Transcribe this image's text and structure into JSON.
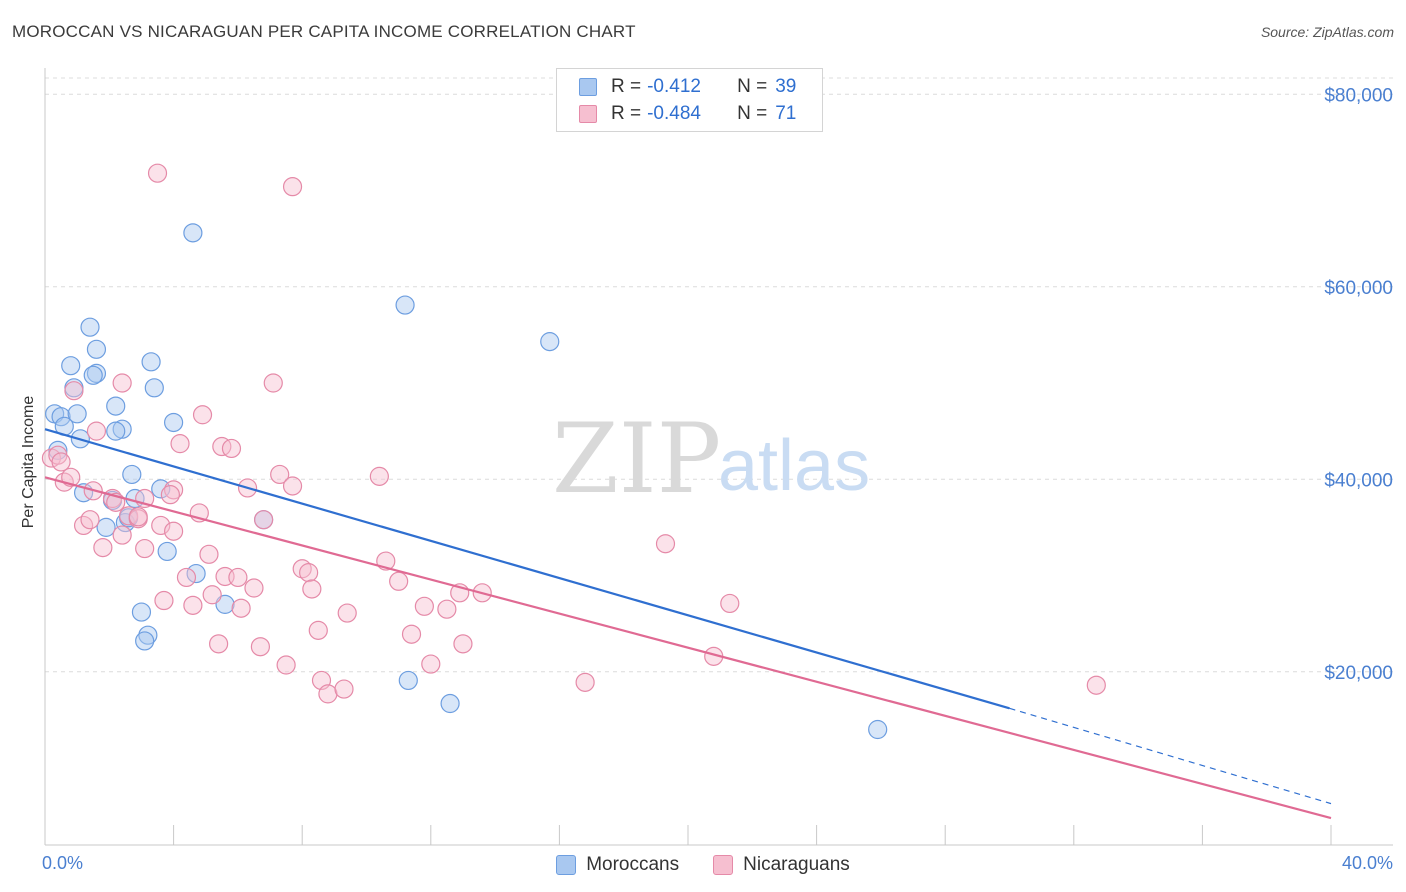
{
  "header": {
    "title": "MOROCCAN VS NICARAGUAN PER CAPITA INCOME CORRELATION CHART",
    "source": "Source: ZipAtlas.com"
  },
  "watermark": {
    "zip": "ZIP",
    "atlas": "atlas"
  },
  "stats_legend": {
    "rows": [
      {
        "r_label": "R =",
        "r_value": "-0.412",
        "n_label": "N =",
        "n_value": "39",
        "color": "#a9c8f0",
        "border": "#6d9ee0"
      },
      {
        "r_label": "R =",
        "r_value": "-0.484",
        "n_label": "N =",
        "n_value": "71",
        "color": "#f6bfd0",
        "border": "#e58aa8"
      }
    ]
  },
  "colors": {
    "blue_fill": "#a9c8f0",
    "blue_stroke": "#6d9ee0",
    "blue_line": "#2f6fd0",
    "pink_fill": "#f6bfd0",
    "pink_stroke": "#e58aa8",
    "pink_line": "#e06a93",
    "grid": "#dcdcdc",
    "tick_text": "#4a7fd0"
  },
  "chart_data": {
    "type": "scatter",
    "title": "MOROCCAN VS NICARAGUAN PER CAPITA INCOME CORRELATION CHART",
    "xlabel": "",
    "ylabel": "Per Capita Income",
    "xlim": [
      0,
      40
    ],
    "ylim": [
      2000,
      82000
    ],
    "x_tick_labels": [
      "0.0%",
      "40.0%"
    ],
    "y_ticks": [
      20000,
      40000,
      60000,
      80000
    ],
    "y_tick_labels": [
      "$20,000",
      "$40,000",
      "$60,000",
      "$80,000"
    ],
    "grid": "horizontal dashed",
    "legend_placement": "top-center (stats), bottom-center (series)",
    "series": [
      {
        "name": "Moroccans",
        "color": "#a9c8f0",
        "r": -0.412,
        "n": 39,
        "trend": {
          "x0": 0,
          "y0": 45200,
          "x1": 30,
          "y1": 16200,
          "dashed_to_x": 40,
          "dashed_to_y": 6300
        },
        "points": [
          [
            0.3,
            46800
          ],
          [
            0.5,
            46500
          ],
          [
            0.6,
            45500
          ],
          [
            0.4,
            43000
          ],
          [
            1.0,
            46800
          ],
          [
            1.1,
            44200
          ],
          [
            0.8,
            51800
          ],
          [
            0.9,
            49500
          ],
          [
            1.4,
            55800
          ],
          [
            1.6,
            53500
          ],
          [
            1.6,
            51000
          ],
          [
            1.5,
            50800
          ],
          [
            2.2,
            47600
          ],
          [
            2.4,
            45200
          ],
          [
            2.2,
            45000
          ],
          [
            3.3,
            52200
          ],
          [
            3.4,
            49500
          ],
          [
            4.0,
            45900
          ],
          [
            4.6,
            65600
          ],
          [
            1.2,
            38600
          ],
          [
            1.9,
            35000
          ],
          [
            2.7,
            40500
          ],
          [
            2.8,
            38000
          ],
          [
            2.5,
            35500
          ],
          [
            3.6,
            39000
          ],
          [
            3.8,
            32500
          ],
          [
            4.7,
            30200
          ],
          [
            5.6,
            27000
          ],
          [
            3.0,
            26200
          ],
          [
            3.2,
            23800
          ],
          [
            3.1,
            23200
          ],
          [
            6.8,
            35800
          ],
          [
            11.2,
            58100
          ],
          [
            15.7,
            54300
          ],
          [
            11.3,
            19100
          ],
          [
            12.6,
            16700
          ],
          [
            25.9,
            14000
          ],
          [
            2.6,
            36000
          ],
          [
            2.1,
            37800
          ]
        ]
      },
      {
        "name": "Nicaraguans",
        "color": "#f6bfd0",
        "r": -0.484,
        "n": 71,
        "trend": {
          "x0": 0,
          "y0": 40200,
          "x1": 40,
          "y1": 4800
        },
        "points": [
          [
            0.2,
            42200
          ],
          [
            0.4,
            42500
          ],
          [
            0.5,
            41800
          ],
          [
            0.6,
            39700
          ],
          [
            0.8,
            40200
          ],
          [
            0.9,
            49200
          ],
          [
            1.2,
            35200
          ],
          [
            1.4,
            35800
          ],
          [
            1.5,
            38800
          ],
          [
            1.6,
            45000
          ],
          [
            1.8,
            32900
          ],
          [
            2.1,
            38000
          ],
          [
            2.2,
            37600
          ],
          [
            2.4,
            34200
          ],
          [
            2.4,
            50000
          ],
          [
            2.6,
            36200
          ],
          [
            2.9,
            35900
          ],
          [
            3.1,
            32800
          ],
          [
            3.1,
            38000
          ],
          [
            3.5,
            71800
          ],
          [
            3.6,
            35200
          ],
          [
            3.7,
            27400
          ],
          [
            4.0,
            34600
          ],
          [
            4.0,
            38900
          ],
          [
            4.2,
            43700
          ],
          [
            4.4,
            29800
          ],
          [
            4.6,
            26900
          ],
          [
            4.8,
            36500
          ],
          [
            4.9,
            46700
          ],
          [
            5.1,
            32200
          ],
          [
            5.2,
            28000
          ],
          [
            5.4,
            22900
          ],
          [
            5.5,
            43400
          ],
          [
            5.8,
            43200
          ],
          [
            5.6,
            29900
          ],
          [
            6.0,
            29800
          ],
          [
            6.1,
            26600
          ],
          [
            6.3,
            39100
          ],
          [
            6.5,
            28700
          ],
          [
            6.8,
            35800
          ],
          [
            6.7,
            22600
          ],
          [
            7.1,
            50000
          ],
          [
            7.3,
            40500
          ],
          [
            7.5,
            20700
          ],
          [
            7.7,
            39300
          ],
          [
            7.7,
            70400
          ],
          [
            8.0,
            30700
          ],
          [
            8.2,
            30300
          ],
          [
            8.3,
            28600
          ],
          [
            8.5,
            24300
          ],
          [
            8.6,
            19100
          ],
          [
            8.8,
            17700
          ],
          [
            9.3,
            18200
          ],
          [
            9.4,
            26100
          ],
          [
            10.4,
            40300
          ],
          [
            10.6,
            31500
          ],
          [
            11.0,
            29400
          ],
          [
            11.4,
            23900
          ],
          [
            11.8,
            26800
          ],
          [
            12.0,
            20800
          ],
          [
            12.5,
            26500
          ],
          [
            12.9,
            28200
          ],
          [
            13.0,
            22900
          ],
          [
            13.6,
            28200
          ],
          [
            16.8,
            18900
          ],
          [
            19.3,
            33300
          ],
          [
            20.8,
            21600
          ],
          [
            21.3,
            27100
          ],
          [
            32.7,
            18600
          ],
          [
            2.9,
            36100
          ],
          [
            3.9,
            38400
          ]
        ]
      }
    ]
  }
}
